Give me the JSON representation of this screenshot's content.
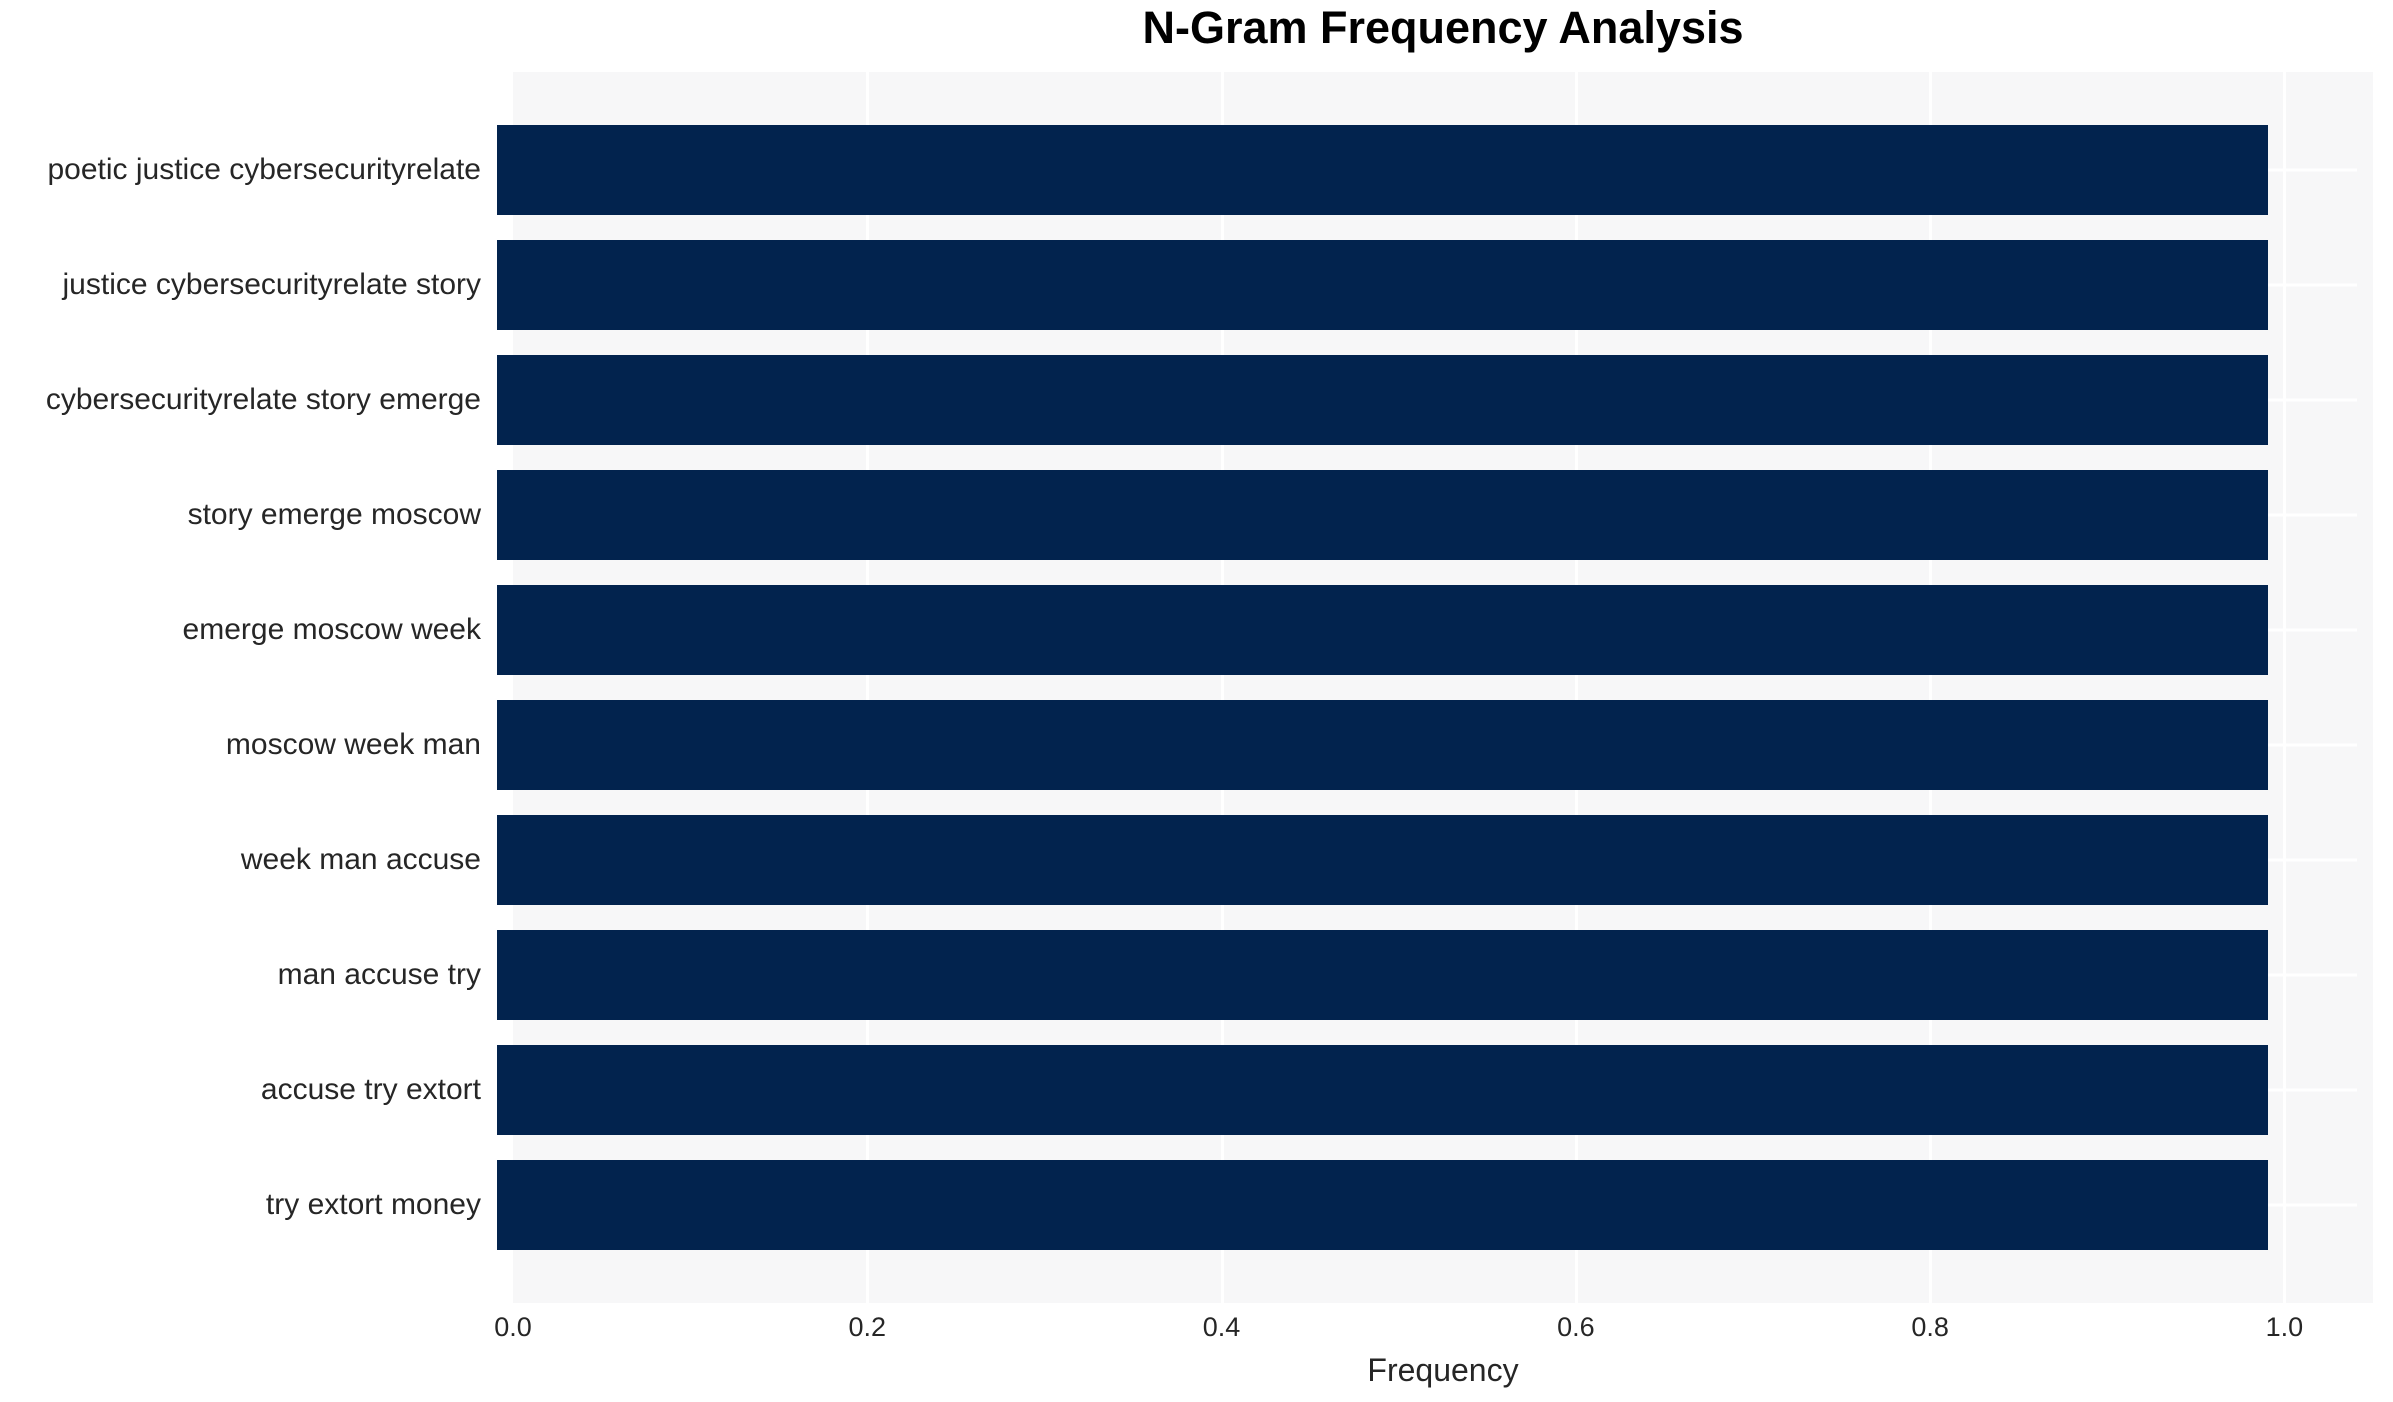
{
  "title": "N-Gram Frequency Analysis",
  "chart_data": {
    "type": "bar",
    "orientation": "horizontal",
    "title": "N-Gram Frequency Analysis",
    "categories": [
      "poetic justice cybersecurityrelate",
      "justice cybersecurityrelate story",
      "cybersecurityrelate story emerge",
      "story emerge moscow",
      "emerge moscow week",
      "moscow week man",
      "week man accuse",
      "man accuse try",
      "accuse try extort",
      "try extort money"
    ],
    "values": [
      1.0,
      1.0,
      1.0,
      1.0,
      1.0,
      1.0,
      1.0,
      1.0,
      1.0,
      1.0
    ],
    "xlabel": "Frequency",
    "ylabel": "",
    "xlim": [
      0,
      1.05
    ],
    "x_ticks": [
      0.0,
      0.2,
      0.4,
      0.6,
      0.8,
      1.0
    ],
    "x_tick_labels": [
      "0.0",
      "0.2",
      "0.4",
      "0.6",
      "0.8",
      "1.0"
    ],
    "grid": true,
    "legend": false,
    "colors": {
      "bar": "#02234e",
      "plot_background": "#f7f7f8",
      "grid": "#ffffff",
      "title": "#000000",
      "tick_label": "#262626",
      "category_label": "#262626",
      "page_background": "#ffffff"
    }
  }
}
